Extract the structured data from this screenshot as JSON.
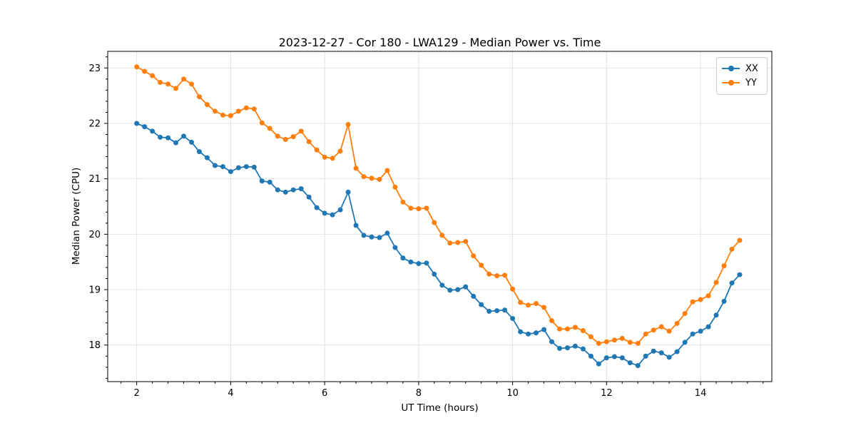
{
  "chart_data": {
    "type": "line",
    "title": "2023-12-27 - Cor 180 - LWA129 - Median Power vs. Time",
    "xlabel": "UT Time (hours)",
    "ylabel": "Median Power (CPU)",
    "xlim": [
      1.383,
      15.517
    ],
    "ylim": [
      17.34,
      23.3
    ],
    "xticks": [
      2,
      4,
      6,
      8,
      10,
      12,
      14
    ],
    "yticks": [
      18,
      19,
      20,
      21,
      22,
      23
    ],
    "x_minor_step": 0.3333,
    "y_minor_step": 0.2,
    "grid": true,
    "legend_position": "upper right",
    "marker": "circle",
    "background_color": "#ffffff",
    "grid_color": "#e4e4e4",
    "x": [
      2,
      2.167,
      2.333,
      2.5,
      2.667,
      2.833,
      3,
      3.167,
      3.333,
      3.5,
      3.667,
      3.833,
      4,
      4.167,
      4.333,
      4.5,
      4.667,
      4.833,
      5,
      5.167,
      5.333,
      5.5,
      5.667,
      5.833,
      6,
      6.167,
      6.333,
      6.5,
      6.667,
      6.833,
      7,
      7.167,
      7.333,
      7.5,
      7.667,
      7.833,
      8,
      8.167,
      8.333,
      8.5,
      8.667,
      8.833,
      9,
      9.167,
      9.333,
      9.5,
      9.667,
      9.833,
      10,
      10.167,
      10.333,
      10.5,
      10.667,
      10.833,
      11,
      11.167,
      11.333,
      11.5,
      11.667,
      11.833,
      12,
      12.167,
      12.333,
      12.5,
      12.667,
      12.833,
      13,
      13.167,
      13.333,
      13.5,
      13.667,
      13.833,
      14,
      14.167,
      14.333,
      14.5,
      14.667,
      14.833
    ],
    "series": [
      {
        "name": "XX",
        "color": "#1f77b4",
        "values": [
          22.0,
          21.94,
          21.86,
          21.75,
          21.74,
          21.65,
          21.77,
          21.66,
          21.49,
          21.38,
          21.24,
          21.22,
          21.13,
          21.2,
          21.22,
          21.21,
          20.96,
          20.94,
          20.8,
          20.76,
          20.8,
          20.82,
          20.67,
          20.48,
          20.38,
          20.35,
          20.44,
          20.76,
          20.16,
          19.98,
          19.95,
          19.94,
          20.02,
          19.76,
          19.57,
          19.5,
          19.47,
          19.48,
          19.28,
          19.08,
          18.99,
          19.0,
          19.05,
          18.88,
          18.73,
          18.61,
          18.62,
          18.63,
          18.48,
          18.24,
          18.2,
          18.22,
          18.28,
          18.06,
          17.94,
          17.95,
          17.98,
          17.93,
          17.8,
          17.66,
          17.77,
          17.79,
          17.77,
          17.68,
          17.63,
          17.8,
          17.89,
          17.86,
          17.78,
          17.88,
          18.05,
          18.2,
          18.25,
          18.33,
          18.54,
          18.79,
          19.12,
          19.27
        ]
      },
      {
        "name": "YY",
        "color": "#ff7f0e",
        "values": [
          23.02,
          22.94,
          22.86,
          22.74,
          22.71,
          22.63,
          22.8,
          22.71,
          22.48,
          22.34,
          22.22,
          22.15,
          22.14,
          22.22,
          22.28,
          22.26,
          22.01,
          21.91,
          21.77,
          21.71,
          21.76,
          21.86,
          21.67,
          21.52,
          21.39,
          21.37,
          21.5,
          21.98,
          21.19,
          21.04,
          21.01,
          20.99,
          21.15,
          20.85,
          20.58,
          20.47,
          20.46,
          20.47,
          20.21,
          19.98,
          19.84,
          19.85,
          19.87,
          19.61,
          19.44,
          19.28,
          19.25,
          19.26,
          19.01,
          18.77,
          18.72,
          18.75,
          18.68,
          18.44,
          18.29,
          18.29,
          18.32,
          18.26,
          18.15,
          18.03,
          18.06,
          18.09,
          18.12,
          18.05,
          18.03,
          18.2,
          18.27,
          18.33,
          18.25,
          18.39,
          18.57,
          18.78,
          18.82,
          18.89,
          19.13,
          19.43,
          19.73,
          19.89
        ]
      }
    ]
  }
}
